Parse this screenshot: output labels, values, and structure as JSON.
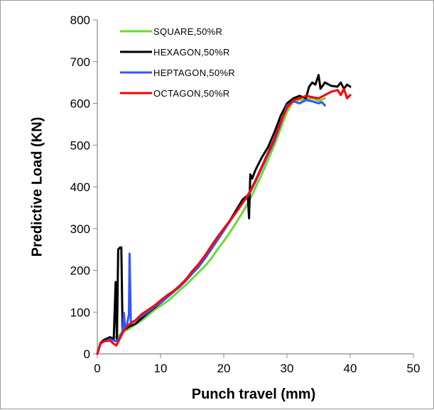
{
  "chart_data": {
    "type": "line",
    "title": "",
    "xlabel": "Punch travel (mm)",
    "ylabel": "Predictive Load (KN)",
    "xlim": [
      0,
      50
    ],
    "ylim": [
      0,
      800
    ],
    "xticks": [
      0,
      10,
      20,
      30,
      40,
      50
    ],
    "yticks": [
      0,
      100,
      200,
      300,
      400,
      500,
      600,
      700,
      800
    ],
    "grid": false,
    "legend_position": "top-left",
    "series": [
      {
        "name": "SQUARE,50%R",
        "color": "#66dd33",
        "points": [
          [
            0,
            0
          ],
          [
            0.5,
            25
          ],
          [
            1,
            32
          ],
          [
            2,
            38
          ],
          [
            3,
            40
          ],
          [
            3.5,
            45
          ],
          [
            4,
            52
          ],
          [
            5,
            60
          ],
          [
            6,
            70
          ],
          [
            7,
            80
          ],
          [
            8,
            92
          ],
          [
            9,
            105
          ],
          [
            10,
            115
          ],
          [
            11,
            125
          ],
          [
            12,
            138
          ],
          [
            13,
            152
          ],
          [
            14,
            165
          ],
          [
            15,
            180
          ],
          [
            16,
            195
          ],
          [
            17,
            210
          ],
          [
            18,
            228
          ],
          [
            19,
            250
          ],
          [
            20,
            270
          ],
          [
            21,
            292
          ],
          [
            22,
            315
          ],
          [
            23,
            340
          ],
          [
            24,
            365
          ],
          [
            25,
            398
          ],
          [
            26,
            430
          ],
          [
            27,
            465
          ],
          [
            28,
            500
          ],
          [
            29,
            540
          ],
          [
            30,
            580
          ],
          [
            31,
            605
          ],
          [
            32,
            608
          ],
          [
            33,
            610
          ],
          [
            34,
            612
          ],
          [
            35,
            606
          ],
          [
            36,
            612
          ]
        ]
      },
      {
        "name": "HEXAGON,50%R",
        "color": "#000000",
        "points": [
          [
            0,
            0
          ],
          [
            0.5,
            26
          ],
          [
            1,
            33
          ],
          [
            2,
            40
          ],
          [
            2.6,
            35
          ],
          [
            2.9,
            172
          ],
          [
            3.1,
            30
          ],
          [
            3.3,
            250
          ],
          [
            3.6,
            255
          ],
          [
            3.8,
            255
          ],
          [
            4,
            55
          ],
          [
            4.5,
            60
          ],
          [
            5,
            65
          ],
          [
            6,
            72
          ],
          [
            7,
            85
          ],
          [
            8,
            98
          ],
          [
            9,
            110
          ],
          [
            10,
            122
          ],
          [
            11,
            135
          ],
          [
            12,
            148
          ],
          [
            13,
            162
          ],
          [
            14,
            178
          ],
          [
            15,
            195
          ],
          [
            16,
            212
          ],
          [
            17,
            232
          ],
          [
            18,
            252
          ],
          [
            19,
            275
          ],
          [
            20,
            298
          ],
          [
            21,
            320
          ],
          [
            22,
            345
          ],
          [
            23,
            370
          ],
          [
            23.8,
            380
          ],
          [
            24,
            325
          ],
          [
            24.2,
            430
          ],
          [
            24.5,
            420
          ],
          [
            25,
            440
          ],
          [
            26,
            470
          ],
          [
            27,
            495
          ],
          [
            28,
            530
          ],
          [
            29,
            570
          ],
          [
            30,
            600
          ],
          [
            31,
            612
          ],
          [
            32,
            618
          ],
          [
            33,
            612
          ],
          [
            33.5,
            640
          ],
          [
            34,
            650
          ],
          [
            34.5,
            645
          ],
          [
            35,
            668
          ],
          [
            35.3,
            635
          ],
          [
            36,
            650
          ],
          [
            37,
            642
          ],
          [
            38,
            640
          ],
          [
            38.5,
            650
          ],
          [
            39,
            635
          ],
          [
            39.5,
            645
          ],
          [
            40,
            640
          ]
        ]
      },
      {
        "name": "HEPTAGON,50%R",
        "color": "#3355ff",
        "points": [
          [
            0,
            0
          ],
          [
            0.5,
            24
          ],
          [
            1,
            30
          ],
          [
            2,
            35
          ],
          [
            3,
            30
          ],
          [
            3.5,
            38
          ],
          [
            4,
            55
          ],
          [
            4.2,
            98
          ],
          [
            4.4,
            60
          ],
          [
            4.7,
            70
          ],
          [
            5,
            95
          ],
          [
            5.1,
            240
          ],
          [
            5.3,
            75
          ],
          [
            6,
            80
          ],
          [
            7,
            90
          ],
          [
            8,
            100
          ],
          [
            9,
            112
          ],
          [
            10,
            122
          ],
          [
            11,
            135
          ],
          [
            12,
            148
          ],
          [
            13,
            160
          ],
          [
            14,
            175
          ],
          [
            15,
            192
          ],
          [
            16,
            208
          ],
          [
            17,
            228
          ],
          [
            18,
            250
          ],
          [
            19,
            272
          ],
          [
            20,
            295
          ],
          [
            21,
            318
          ],
          [
            22,
            340
          ],
          [
            23,
            362
          ],
          [
            24,
            382
          ],
          [
            25,
            412
          ],
          [
            26,
            445
          ],
          [
            27,
            478
          ],
          [
            28,
            510
          ],
          [
            29,
            552
          ],
          [
            30,
            595
          ],
          [
            31,
            605
          ],
          [
            32,
            600
          ],
          [
            33,
            608
          ],
          [
            34,
            605
          ],
          [
            35,
            600
          ],
          [
            35.5,
            603
          ],
          [
            36,
            595
          ]
        ]
      },
      {
        "name": "OCTAGON,50%R",
        "color": "#ff0000",
        "points": [
          [
            0,
            0
          ],
          [
            0.5,
            25
          ],
          [
            1,
            30
          ],
          [
            2,
            32
          ],
          [
            2.5,
            25
          ],
          [
            3,
            20
          ],
          [
            3.5,
            35
          ],
          [
            4,
            50
          ],
          [
            4.5,
            62
          ],
          [
            5,
            70
          ],
          [
            6,
            80
          ],
          [
            7,
            95
          ],
          [
            8,
            105
          ],
          [
            9,
            115
          ],
          [
            10,
            128
          ],
          [
            11,
            140
          ],
          [
            12,
            150
          ],
          [
            13,
            163
          ],
          [
            14,
            178
          ],
          [
            15,
            198
          ],
          [
            16,
            215
          ],
          [
            17,
            235
          ],
          [
            18,
            258
          ],
          [
            19,
            280
          ],
          [
            20,
            300
          ],
          [
            21,
            320
          ],
          [
            22,
            340
          ],
          [
            23,
            362
          ],
          [
            24,
            385
          ],
          [
            25,
            415
          ],
          [
            26,
            448
          ],
          [
            27,
            482
          ],
          [
            28,
            515
          ],
          [
            29,
            555
          ],
          [
            30,
            590
          ],
          [
            31,
            608
          ],
          [
            32,
            612
          ],
          [
            33,
            618
          ],
          [
            34,
            615
          ],
          [
            35,
            612
          ],
          [
            36,
            620
          ],
          [
            37,
            628
          ],
          [
            38,
            632
          ],
          [
            38.5,
            620
          ],
          [
            39,
            635
          ],
          [
            39.5,
            612
          ],
          [
            40,
            620
          ]
        ]
      }
    ]
  }
}
